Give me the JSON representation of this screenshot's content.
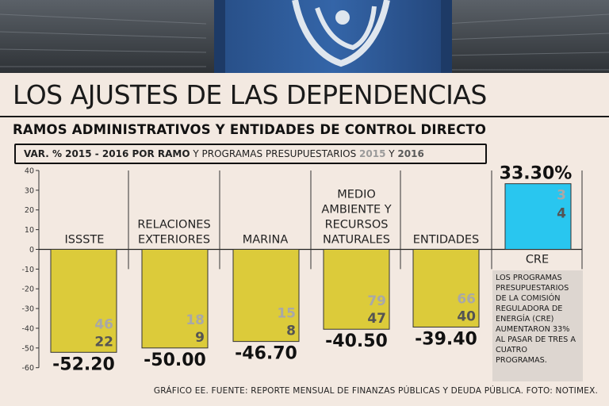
{
  "header": {
    "title": "LOS AJUSTES DE LAS DEPENDENCIAS",
    "subtitle": "RAMOS ADMINISTRATIVOS Y ENTIDADES DE CONTROL DIRECTO"
  },
  "legend": {
    "bold_part": "VAR. % 2015 - 2016 POR RAMO",
    "plain_part": " Y PROGRAMAS PRESUPUESTARIOS ",
    "year1": "2015",
    "joiner": " Y ",
    "year2": "2016"
  },
  "note": "LOS PROGRAMAS PRESUPUESTARIOS DE LA COMISIÓN REGULADORA DE ENERGÍA (CRE) AUMENTARON 33% AL PASAR DE TRES A CUATRO PROGRAMAS.",
  "footer": "GRÁFICO EE. FUENTE: REPORTE MENSUAL DE FINANZAS PÚBLICAS Y DEUDA PÚBLICA. FOTO: NOTIMEX.",
  "colors": {
    "negative_bar": "#dccb3a",
    "positive_bar": "#29c6ef",
    "programs_2015": "#a8a8a8",
    "programs_2016": "#545454",
    "background": "#f3e9e1"
  },
  "chart_data": {
    "type": "bar",
    "title": "VAR. % 2015 - 2016 POR RAMO",
    "ylim": [
      -60,
      40
    ],
    "yticks": [
      40,
      30,
      20,
      10,
      0,
      -10,
      -20,
      -30,
      -40,
      -50,
      -60
    ],
    "categories": [
      {
        "label_lines": [
          "ISSSTE"
        ],
        "value": -52.2,
        "value_label": "-52.20",
        "programs_2015": "46",
        "programs_2016": "22"
      },
      {
        "label_lines": [
          "RELACIONES",
          "EXTERIORES"
        ],
        "value": -50.0,
        "value_label": "-50.00",
        "programs_2015": "18",
        "programs_2016": "9"
      },
      {
        "label_lines": [
          "MARINA"
        ],
        "value": -46.7,
        "value_label": "-46.70",
        "programs_2015": "15",
        "programs_2016": "8"
      },
      {
        "label_lines": [
          "MEDIO",
          "AMBIENTE Y",
          "RECURSOS",
          "NATURALES"
        ],
        "value": -40.5,
        "value_label": "-40.50",
        "programs_2015": "79",
        "programs_2016": "47"
      },
      {
        "label_lines": [
          "ENTIDADES"
        ],
        "value": -39.4,
        "value_label": "-39.40",
        "programs_2015": "66",
        "programs_2016": "40"
      },
      {
        "label_lines": [
          "CRE"
        ],
        "value": 33.3,
        "value_label": "33.30%",
        "programs_2015": "3",
        "programs_2016": "4"
      }
    ]
  }
}
